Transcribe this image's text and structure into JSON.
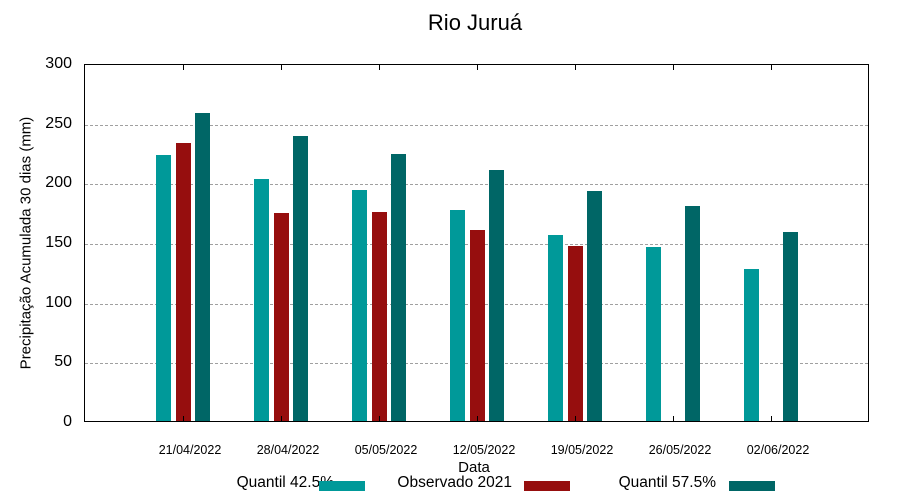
{
  "chart_data": {
    "type": "bar",
    "title": "Rio Juruá",
    "xlabel": "Data",
    "ylabel": "Precipitação Acumulada 30 dias (mm)",
    "ylim": [
      0,
      300
    ],
    "yticks": [
      0,
      50,
      100,
      150,
      200,
      250,
      300
    ],
    "grid": true,
    "legend_position": "bottom",
    "categories": [
      "21/04/2022",
      "28/04/2022",
      "05/05/2022",
      "12/05/2022",
      "19/05/2022",
      "26/05/2022",
      "02/06/2022"
    ],
    "series": [
      {
        "name": "Quantil 42.5%",
        "color": "#009999",
        "values": [
          223,
          203,
          194,
          177,
          156,
          146,
          127
        ]
      },
      {
        "name": "Observado 2021",
        "color": "#960E0E",
        "values": [
          233,
          174,
          175,
          160,
          147,
          null,
          null
        ]
      },
      {
        "name": "Quantil 57.5%",
        "color": "#006666",
        "values": [
          258,
          239,
          224,
          210,
          193,
          180,
          158
        ]
      }
    ]
  }
}
